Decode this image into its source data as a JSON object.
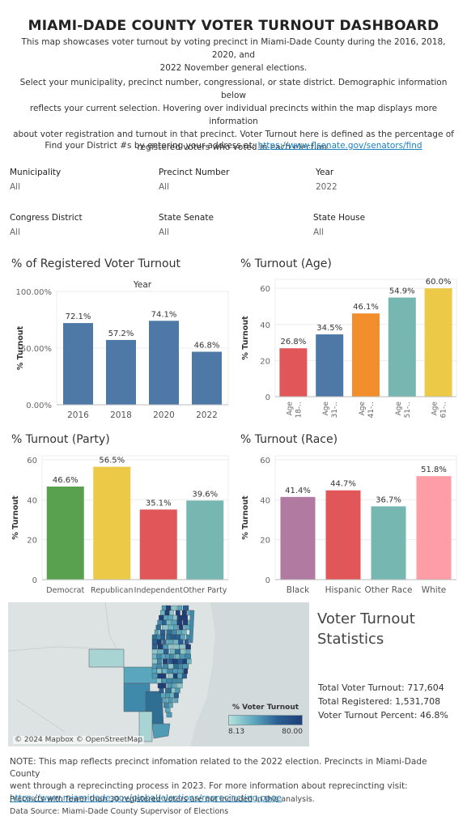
{
  "header": {
    "title": "MIAMI-DADE COUNTY VOTER TURNOUT DASHBOARD",
    "intro_line1": "This map showcases voter turnout by voting precinct in Miami-Dade County during the 2016, 2018, 2020, and",
    "intro_line2": "2022 November general elections.",
    "select_line1": "Select your municipality, precinct number, congressional, or state district. Demographic information below",
    "select_line2": "reflects your current selection. Hovering over individual precincts within the map displays more information",
    "select_line3": "about voter registration and turnout in that precinct. Voter Turnout here is defined as the percentage of",
    "select_line4": "registered voters who voted in each election.",
    "find_text": "Find your District #s by entering your address at: ",
    "find_link": "https://www.flsenate.gov/senators/find"
  },
  "filters": [
    {
      "label": "Municipality",
      "value": "All"
    },
    {
      "label": "Precinct Number",
      "value": "All"
    },
    {
      "label": "Year",
      "value": "2022"
    },
    {
      "label": "Congress District",
      "value": "All"
    },
    {
      "label": "State Senate",
      "value": "All"
    },
    {
      "label": "State House",
      "value": "All"
    }
  ],
  "colors": {
    "blue": "#4e79a7",
    "red": "#e15759",
    "orange": "#f28e2b",
    "teal": "#76b7b2",
    "yellow": "#edc948",
    "green": "#59a14f",
    "purple": "#b07aa1",
    "pink": "#ff9da7"
  },
  "chart_data": [
    {
      "id": "registered",
      "type": "bar",
      "title": "% of Registered Voter Turnout",
      "header": "Year",
      "ylabel": "% Turnout",
      "categories": [
        "2016",
        "2018",
        "2020",
        "2022"
      ],
      "values": [
        72.1,
        57.2,
        74.1,
        46.8
      ],
      "labels": [
        "72.1%",
        "57.2%",
        "74.1%",
        "46.8%"
      ],
      "ylim": [
        0,
        100
      ],
      "ticks": [
        0,
        50,
        100
      ],
      "tick_labels": [
        "0.00%",
        "50.00%",
        "100.00%"
      ],
      "colors": [
        "#4e79a7",
        "#4e79a7",
        "#4e79a7",
        "#4e79a7"
      ]
    },
    {
      "id": "age",
      "type": "bar",
      "title": "% Turnout (Age)",
      "ylabel": "% Turnout",
      "categories": [
        "Age 18-..",
        "Age 31-..",
        "Age 41-..",
        "Age 51-..",
        "Age 61-.."
      ],
      "values": [
        26.8,
        34.5,
        46.1,
        54.9,
        60.0
      ],
      "labels": [
        "26.8%",
        "34.5%",
        "46.1%",
        "54.9%",
        "60.0%"
      ],
      "ylim": [
        0,
        65
      ],
      "ticks": [
        0,
        20,
        40,
        60
      ],
      "tick_labels": [
        "0",
        "20",
        "40",
        "60"
      ],
      "colors": [
        "#e15759",
        "#4e79a7",
        "#f28e2b",
        "#76b7b2",
        "#edc948"
      ]
    },
    {
      "id": "party",
      "type": "bar",
      "title": "% Turnout (Party)",
      "ylabel": "% Turnout",
      "categories": [
        "Democrat",
        "Republican",
        "Independent",
        "Other Party"
      ],
      "values": [
        46.6,
        56.5,
        35.1,
        39.6
      ],
      "labels": [
        "46.6%",
        "56.5%",
        "35.1%",
        "39.6%"
      ],
      "ylim": [
        0,
        62
      ],
      "ticks": [
        0,
        20,
        40,
        60
      ],
      "tick_labels": [
        "0",
        "20",
        "40",
        "60"
      ],
      "colors": [
        "#59a14f",
        "#edc948",
        "#e15759",
        "#76b7b2"
      ]
    },
    {
      "id": "race",
      "type": "bar",
      "title": "% Turnout (Race)",
      "ylabel": "% Turnout",
      "categories": [
        "Black",
        "Hispanic",
        "Other Race",
        "White"
      ],
      "values": [
        41.4,
        44.7,
        36.7,
        51.8
      ],
      "labels": [
        "41.4%",
        "44.7%",
        "36.7%",
        "51.8%"
      ],
      "ylim": [
        0,
        62
      ],
      "ticks": [
        0,
        20,
        40,
        60
      ],
      "tick_labels": [
        "0",
        "20",
        "40",
        "60"
      ],
      "colors": [
        "#b07aa1",
        "#e15759",
        "#76b7b2",
        "#ff9da7"
      ]
    }
  ],
  "map": {
    "legend_title": "% Voter Turnout",
    "legend_min": "8.13",
    "legend_max": "80.00",
    "attribution": "© 2024 Mapbox © OpenStreetMap"
  },
  "stats": {
    "title_line1": "Voter Turnout",
    "title_line2": "Statistics",
    "total_turnout": "Total Voter Turnout: 717,604",
    "total_registered": "Total Registered: 1,531,708",
    "turnout_percent": "Voter Turnout Percent: 46.8%"
  },
  "footer": {
    "note_line1": "NOTE:  This map reflects precinct infomation related to the 2022 election. Precincts in Miami-Dade County",
    "note_line2": "went through a reprecincting process in 2023. For more information about reprecincting visit:",
    "note_link": "https://www.miamidade.gov/global/elections/reprecincting.page",
    "small1": "Precincts with fewer than 30 registered voters are not included in this analysis.",
    "small2": "Data Source: Miami-Dade County Supervisor of Elections"
  }
}
